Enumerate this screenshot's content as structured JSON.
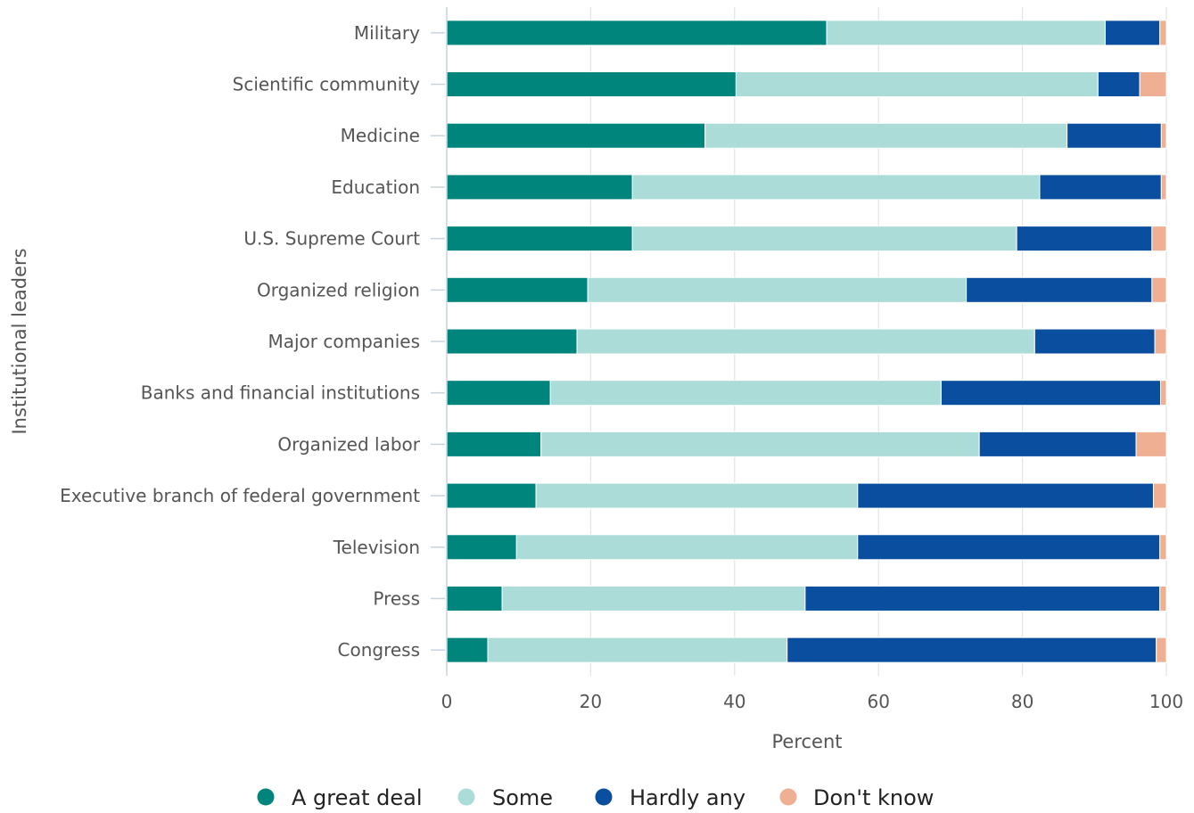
{
  "chart_data": {
    "type": "bar",
    "orientation": "horizontal",
    "stacked": true,
    "xlabel": "Percent",
    "ylabel": "Institutional leaders",
    "xlim": [
      0,
      100
    ],
    "xticks": [
      0,
      20,
      40,
      60,
      80,
      100
    ],
    "grid": true,
    "legend_position": "bottom",
    "categories": [
      "Military",
      "Scientific community",
      "Medicine",
      "Education",
      "U.S. Supreme Court",
      "Organized religion",
      "Major companies",
      "Banks and financial institutions",
      "Organized labor",
      "Executive branch of federal government",
      "Television",
      "Press",
      "Congress"
    ],
    "series": [
      {
        "name": "A great deal",
        "color": "#00857c",
        "values": [
          52.8,
          40.2,
          35.9,
          25.8,
          25.8,
          19.6,
          18.1,
          14.4,
          13.1,
          12.4,
          9.7,
          7.7,
          5.7
        ]
      },
      {
        "name": "Some",
        "color": "#acdcd8",
        "values": [
          38.7,
          50.3,
          50.3,
          56.6,
          53.4,
          52.6,
          63.6,
          54.3,
          60.9,
          44.7,
          47.4,
          42.1,
          41.6
        ]
      },
      {
        "name": "Hardly any",
        "color": "#0a4f9f",
        "values": [
          7.6,
          5.8,
          13.1,
          16.9,
          18.8,
          25.8,
          16.7,
          30.5,
          21.8,
          41.1,
          42.0,
          49.3,
          51.3
        ]
      },
      {
        "name": "Don't know",
        "color": "#efaf93",
        "values": [
          0.9,
          3.7,
          0.7,
          0.7,
          2.0,
          2.0,
          1.6,
          0.8,
          4.2,
          1.8,
          0.9,
          0.9,
          1.4
        ]
      }
    ]
  }
}
